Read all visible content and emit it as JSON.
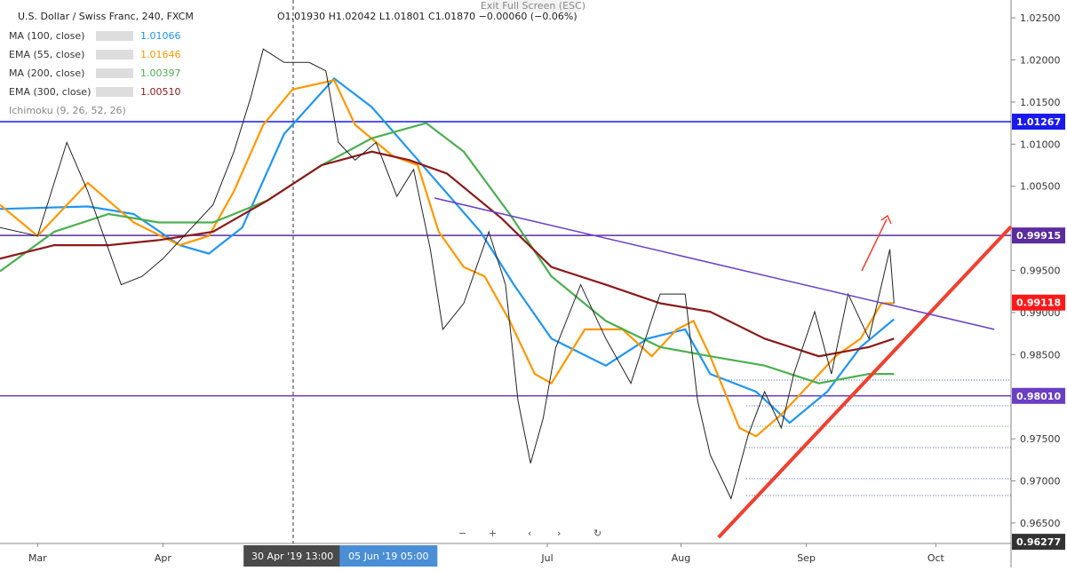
{
  "chart_data": {
    "type": "line",
    "title": "U.S. Dollar / Swiss Franc, 240, FXCM",
    "ohlc": "O1.01930 H1.02042 L1.01801 C1.01870 −0.00060 (−0.06%)",
    "fullscreen_hint": "Exit Full Screen (ESC)",
    "indicator": "Ichimoku (9, 26, 52, 26)",
    "xlim": [
      -9,
      233
    ],
    "ylim": [
      0.96257,
      1.02712
    ],
    "xticks": [
      {
        "value": 0,
        "label": "Mar"
      },
      {
        "value": 30,
        "label": "Apr"
      },
      {
        "value": 122,
        "label": "Jul"
      },
      {
        "value": 154,
        "label": "Aug"
      },
      {
        "value": 184,
        "label": "Sep"
      },
      {
        "value": 215,
        "label": "Oct"
      }
    ],
    "yticks": [
      {
        "value": 1.025,
        "label": "1.02500"
      },
      {
        "value": 1.02,
        "label": "1.02000"
      },
      {
        "value": 1.015,
        "label": "1.01500"
      },
      {
        "value": 1.01,
        "label": "1.01000"
      },
      {
        "value": 1.005,
        "label": "1.00500"
      },
      {
        "value": 0.995,
        "label": "0.99500"
      },
      {
        "value": 0.99,
        "label": "0.99000"
      },
      {
        "value": 0.985,
        "label": "0.98500"
      },
      {
        "value": 0.975,
        "label": "0.97500"
      },
      {
        "value": 0.97,
        "label": "0.97000"
      },
      {
        "value": 0.965,
        "label": "0.96500"
      }
    ],
    "crosshair_labels": [
      {
        "value": 61,
        "label": "30 Apr '19   13:00",
        "color": "#4a4a4a"
      },
      {
        "value": 84,
        "label": "05 Jun '19   05:00",
        "color": "#4a8fd6"
      }
    ],
    "price": {
      "color": "#222222",
      "x": [
        -9,
        0,
        7,
        12,
        20,
        25,
        30,
        36,
        42,
        47,
        51,
        54,
        59,
        65,
        69,
        72,
        76,
        81,
        86,
        90,
        94,
        97,
        102,
        108,
        112,
        115,
        118,
        121,
        124,
        130,
        136,
        142,
        149,
        155,
        158,
        161,
        166,
        170,
        174,
        178,
        181,
        186,
        190,
        194,
        199,
        204,
        205
      ],
      "values": [
        1.0001,
        0.9991,
        1.0102,
        1.0044,
        0.9933,
        0.9943,
        0.9964,
        0.9996,
        1.0028,
        1.0091,
        1.0155,
        1.0213,
        1.0197,
        1.0197,
        1.0187,
        1.0102,
        1.0081,
        1.0102,
        1.0038,
        1.007,
        0.9975,
        0.988,
        0.9911,
        0.9996,
        0.9933,
        0.9795,
        0.9721,
        0.9774,
        0.9858,
        0.9933,
        0.9869,
        0.9816,
        0.9922,
        0.9922,
        0.9795,
        0.9731,
        0.9679,
        0.9753,
        0.9806,
        0.9763,
        0.9827,
        0.9901,
        0.9827,
        0.9922,
        0.9869,
        0.9975,
        0.9911
      ]
    },
    "series": [
      {
        "name": "MA (100, close)",
        "legend_value": "1.01066",
        "color": "#2196f3",
        "x": [
          -9,
          12,
          23,
          34,
          41,
          49,
          59,
          71,
          80,
          93,
          106,
          114,
          123,
          136,
          146,
          155,
          161,
          172,
          180,
          189,
          197,
          205
        ],
        "values": [
          1.0023,
          1.0026,
          1.0017,
          0.998,
          0.997,
          1.0001,
          1.0112,
          1.0178,
          1.0144,
          1.007,
          0.9996,
          0.9933,
          0.9869,
          0.9837,
          0.9869,
          0.988,
          0.9827,
          0.9806,
          0.9769,
          0.9806,
          0.9859,
          0.9892
        ]
      },
      {
        "name": "EMA (55, close)",
        "legend_value": "1.01646",
        "color": "#ff9800",
        "x": [
          -9,
          0,
          12,
          23,
          34,
          41,
          47,
          54,
          61,
          71,
          76,
          85,
          91,
          96,
          102,
          107,
          113,
          119,
          123,
          131,
          140,
          147,
          153,
          157,
          161,
          168,
          172,
          178,
          185,
          191,
          197,
          202,
          205
        ],
        "values": [
          1.0028,
          0.9991,
          1.0054,
          1.0007,
          0.998,
          0.9991,
          1.0044,
          1.0123,
          1.0165,
          1.0176,
          1.0123,
          1.0086,
          1.0075,
          0.9996,
          0.9954,
          0.9943,
          0.989,
          0.9827,
          0.9816,
          0.988,
          0.988,
          0.9848,
          0.988,
          0.989,
          0.9848,
          0.9763,
          0.9753,
          0.9779,
          0.9816,
          0.9848,
          0.9869,
          0.9911,
          0.9911
        ]
      },
      {
        "name": "MA (200, close)",
        "legend_value": "1.00397",
        "color": "#4caf50",
        "x": [
          -9,
          4,
          17,
          29,
          42,
          55,
          68,
          80,
          93,
          102,
          113,
          123,
          136,
          149,
          161,
          174,
          187,
          199,
          205
        ],
        "values": [
          0.9949,
          0.9996,
          1.0017,
          1.0007,
          1.0007,
          1.0033,
          1.0075,
          1.0107,
          1.0125,
          1.0091,
          1.0017,
          0.9943,
          0.989,
          0.9859,
          0.9848,
          0.9837,
          0.9816,
          0.9827,
          0.9827
        ]
      },
      {
        "name": "EMA (300, close)",
        "legend_value": "1.00510",
        "color": "#8b1a1a",
        "x": [
          -9,
          4,
          17,
          29,
          42,
          55,
          68,
          80,
          89,
          98,
          111,
          123,
          136,
          149,
          161,
          174,
          187,
          199,
          205
        ],
        "values": [
          0.9964,
          0.998,
          0.998,
          0.9986,
          0.9996,
          1.0033,
          1.0075,
          1.0091,
          1.0081,
          1.0065,
          1.0012,
          0.9954,
          0.9933,
          0.9911,
          0.9901,
          0.9869,
          0.9848,
          0.9859,
          0.9869
        ]
      }
    ],
    "hlines": [
      {
        "value": 1.01267,
        "label": "1.01267",
        "color": "#1a1aee"
      },
      {
        "value": 0.99915,
        "label": "0.99915",
        "color": "#5b2c9e"
      },
      {
        "value": 0.9801,
        "label": "0.98010",
        "color": "#6a3fc4"
      }
    ],
    "price_tags": [
      {
        "value": 0.99118,
        "label": "0.99118",
        "color": "#ff1a1a"
      },
      {
        "value": 0.96277,
        "label": "0.96277",
        "color": "#333333"
      }
    ],
    "trendlines": [
      {
        "x": [
          163,
          233
        ],
        "values": [
          0.9633,
          1.0002
        ],
        "color": "#f04030"
      },
      {
        "x": [
          95,
          229
        ],
        "values": [
          1.0036,
          0.988
        ],
        "color": "#6a3fc4"
      }
    ]
  }
}
